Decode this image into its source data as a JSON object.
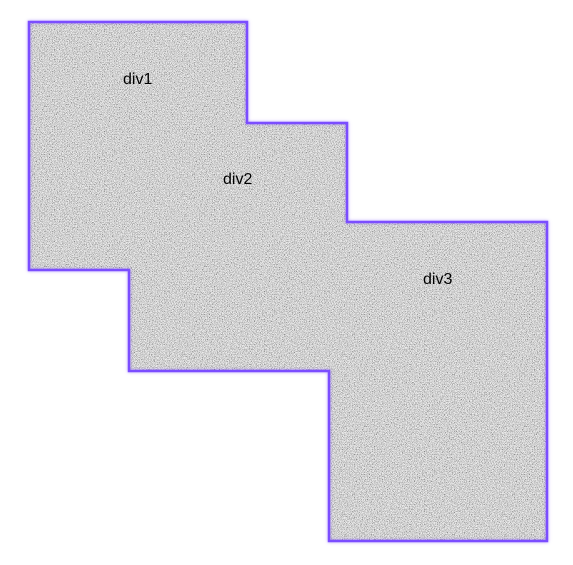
{
  "divs": [
    {
      "label": "div1"
    },
    {
      "label": "div2"
    },
    {
      "label": "div3"
    }
  ],
  "colors": {
    "outline": "#7b4dff",
    "noise_dark": "#5a5a5a",
    "noise_light": "#f2f2f2",
    "background": "#ffffff"
  }
}
